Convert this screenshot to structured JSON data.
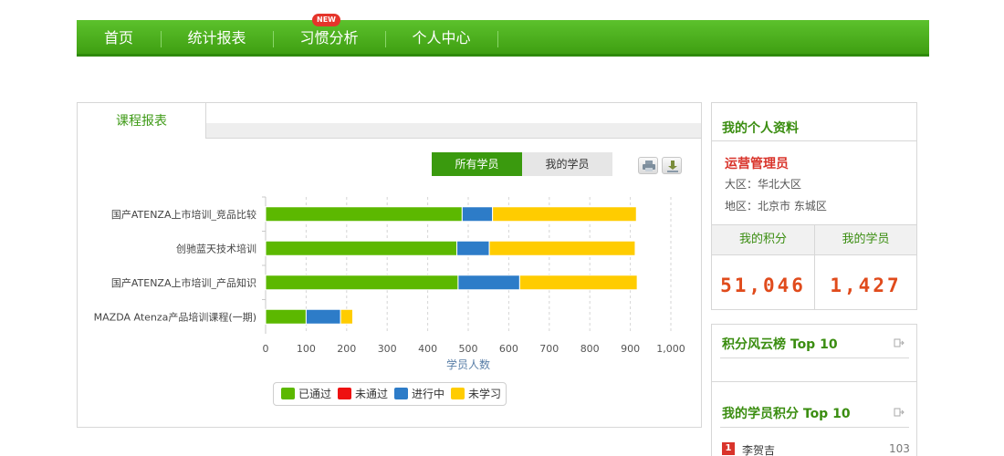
{
  "nav": {
    "items": [
      {
        "label": "首页"
      },
      {
        "label": "统计报表",
        "badge": "NEW"
      },
      {
        "label": "习惯分析"
      },
      {
        "label": "个人中心"
      }
    ]
  },
  "report": {
    "tab_label": "课程报表",
    "filter": {
      "all_label": "所有学员",
      "mine_label": "我的学员",
      "selected": "所有学员"
    },
    "icons": [
      "print-icon",
      "download-icon"
    ]
  },
  "chart_data": {
    "type": "bar",
    "orientation": "horizontal",
    "stacked": true,
    "categories": [
      "国产ATENZA上市培训_竞品比较",
      "创驰蓝天技术培训",
      "国产ATENZA上市培训_产品知识",
      "MAZDA Atenza产品培训课程(一期)"
    ],
    "series": [
      {
        "name": "已通过",
        "color": "#5cb800",
        "values": [
          485,
          472,
          475,
          100
        ]
      },
      {
        "name": "未通过",
        "color": "#ee1111",
        "values": [
          0,
          0,
          0,
          0
        ]
      },
      {
        "name": "进行中",
        "color": "#2d7cc8",
        "values": [
          75,
          80,
          152,
          85
        ]
      },
      {
        "name": "未学习",
        "color": "#ffcc00",
        "values": [
          355,
          360,
          290,
          30
        ]
      }
    ],
    "xlabel": "学员人数",
    "xlim": [
      0,
      1000
    ],
    "xticks": [
      "0",
      "100",
      "200",
      "300",
      "400",
      "500",
      "600",
      "700",
      "800",
      "900",
      "1,000"
    ],
    "grid": "vertical-dashed",
    "legend_placement": "bottom-center"
  },
  "profile": {
    "title": "我的个人资料",
    "username": "运营管理员",
    "region": "大区：华北大区",
    "area": "地区：北京市 东城区",
    "points_label": "我的积分",
    "points_value": "51,046",
    "students_label": "我的学员",
    "students_value": "1,427"
  },
  "rankings": {
    "points_top_title": "积分风云榜 Top 10",
    "my_students_top_title": "我的学员积分 Top 10",
    "entries": [
      {
        "rank": "1",
        "name": "李贺吉",
        "score": "103"
      }
    ]
  },
  "colors": {
    "brand_green": "#3f9f12",
    "accent_red": "#d9342b",
    "value_orange": "#e04b1c"
  }
}
